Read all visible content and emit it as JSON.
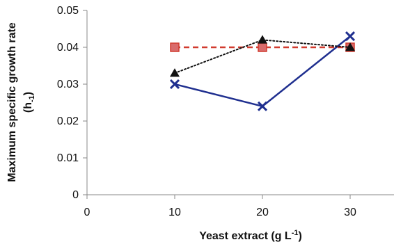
{
  "chart_data": {
    "type": "line",
    "x_axis": {
      "label_main": "Yeast extract",
      "label_unit_prefix": "(g L",
      "label_unit_exp": "-1",
      "label_unit_suffix": ")",
      "range": [
        0,
        35
      ],
      "ticks": [
        0,
        10,
        20,
        30
      ],
      "tick_labels": [
        "0",
        "10",
        "20",
        "30"
      ]
    },
    "y_axis": {
      "label_line1": "Maximum specific growth rate",
      "label_line2_prefix": "(h",
      "label_line2_sub": "-1",
      "label_line2_suffix": ")",
      "range": [
        0,
        0.05
      ],
      "ticks": [
        0,
        0.01,
        0.02,
        0.03,
        0.04,
        0.05
      ],
      "tick_labels": [
        "0",
        "0.01",
        "0.02",
        "0.03",
        "0.04",
        "0.05"
      ]
    },
    "grid": false,
    "legend": "none",
    "series": [
      {
        "x": [
          10,
          20,
          30
        ],
        "y": [
          0.03,
          0.024,
          0.043
        ],
        "line_style": "solid",
        "marker": "x",
        "color": "#1f2f8f"
      },
      {
        "x": [
          10,
          20,
          30
        ],
        "y": [
          0.04,
          0.04,
          0.04
        ],
        "line_style": "dashed",
        "marker": "square",
        "color": "#d13b2f",
        "marker_color": "#d96b6b"
      },
      {
        "x": [
          10,
          20,
          30
        ],
        "y": [
          0.033,
          0.042,
          0.04
        ],
        "line_style": "dotted",
        "marker": "triangle",
        "color": "#111111"
      }
    ]
  }
}
